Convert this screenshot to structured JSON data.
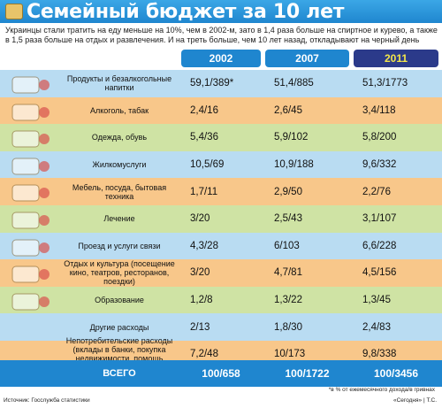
{
  "header": {
    "title": "Семейный бюджет за 10 лет",
    "subtitle": "Украинцы стали тратить на еду меньше на 10%, чем в 2002-м, зато в 1,4 раза больше на спиртное и курево, а также в 1,5 раза больше на отдых и развлечения. И на треть больше, чем 10 лет назад, откладывают на черный день"
  },
  "colors": {
    "title_bar": "#1f86cf",
    "head_2002": "#1f86cf",
    "head_2007": "#1f86cf",
    "head_2011": "#2b3a8a",
    "text_2011": "#f3e64a",
    "band_blue": "#b9dcf2",
    "band_orange": "#f8c78a",
    "band_green": "#cfe3a4",
    "total": "#1f86cf"
  },
  "chart_data": {
    "type": "table",
    "columns": [
      "2002",
      "2007",
      "2011"
    ],
    "rows": [
      {
        "label": "Продукты и безалкогольные напитки",
        "values": [
          "59,1/389*",
          "51,4/885",
          "51,3/1773"
        ],
        "icon": "grocery-bag-icon"
      },
      {
        "label": "Алкоголь, табак",
        "values": [
          "2,4/16",
          "2,6/45",
          "3,4/118"
        ],
        "icon": "wine-glasses-icon"
      },
      {
        "label": "Одежда, обувь",
        "values": [
          "5,4/36",
          "5,9/102",
          "5,8/200"
        ],
        "icon": "shoes-icon"
      },
      {
        "label": "Жилкомуслуги",
        "values": [
          "10,5/69",
          "10,9/188",
          "9,6/332"
        ],
        "icon": "faucet-icon"
      },
      {
        "label": "Мебель, посуда, бытовая техника",
        "values": [
          "1,7/11",
          "2,9/50",
          "2,2/76"
        ],
        "icon": "armchair-icon"
      },
      {
        "label": "Лечение",
        "values": [
          "3/20",
          "2,5/43",
          "3,1/107"
        ],
        "icon": "first-aid-icon"
      },
      {
        "label": "Проезд и услуги связи",
        "values": [
          "4,3/28",
          "6/103",
          "6,6/228"
        ],
        "icon": "phone-card-icon"
      },
      {
        "label": "Отдых и культура (посещение кино, театров, ресторанов, поездки)",
        "values": [
          "3/20",
          "4,7/81",
          "4,5/156"
        ],
        "icon": "trumpet-icon"
      },
      {
        "label": "Образование",
        "values": [
          "1,2/8",
          "1,3/22",
          "1,3/45"
        ],
        "icon": "books-icon"
      },
      {
        "label": "Другие расходы",
        "values": [
          "2/13",
          "1,8/30",
          "2,4/83"
        ],
        "icon": ""
      },
      {
        "label": "Непотребительские расходы (вклады в банки, покупка недвижимости, помощь родственникам)",
        "values": [
          "7,2/48",
          "10/173",
          "9,8/338"
        ],
        "icon": ""
      }
    ],
    "total": {
      "label": "ВСЕГО",
      "values": [
        "100/658",
        "100/1722",
        "100/3456"
      ]
    }
  },
  "footnote": "*в % от ежемесячного дохода/в гривнах",
  "source": "Источник: Госслужба статистики",
  "credit": "«Сегодня» | Т.С."
}
